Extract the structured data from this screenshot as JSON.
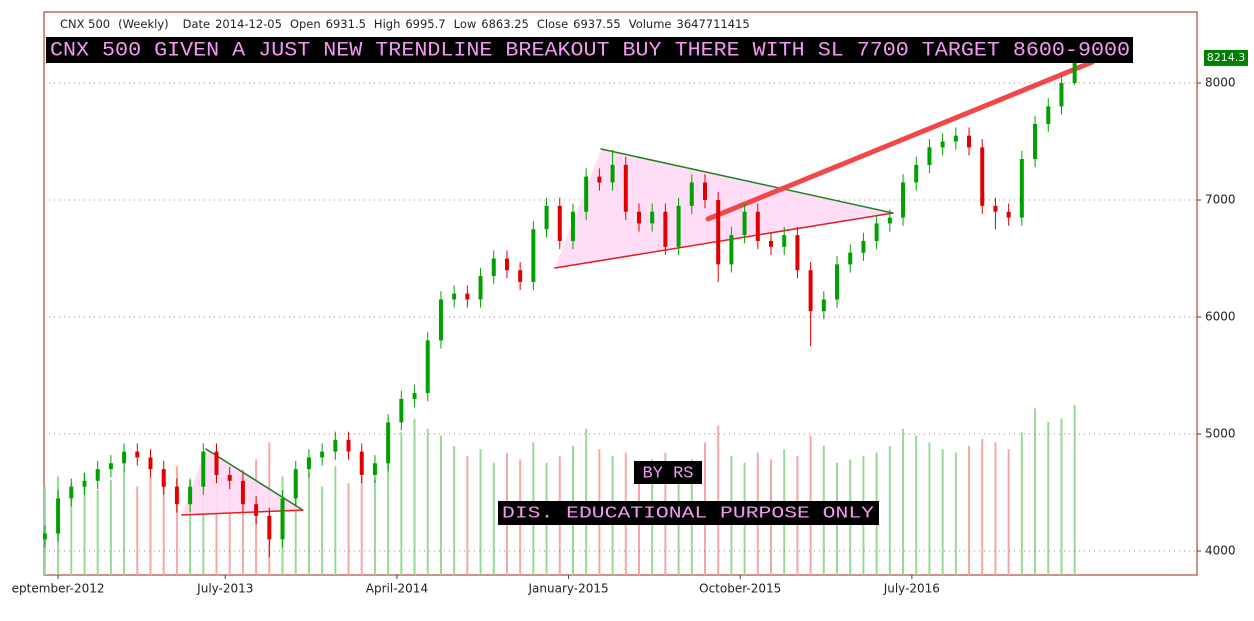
{
  "chart_data": {
    "type": "candlestick",
    "header": {
      "symbol": "CNX 500",
      "interval": "(Weekly)",
      "items": [
        {
          "label": "Date",
          "value": "2014-12-05"
        },
        {
          "label": "Open",
          "value": 6931.5
        },
        {
          "label": "High",
          "value": 6995.7
        },
        {
          "label": "Low",
          "value": 6863.25
        },
        {
          "label": "Close",
          "value": 6937.55
        },
        {
          "label": "Volume",
          "value": 3647711415
        }
      ]
    },
    "annotations": [
      "CNX 500 GIVEN A JUST NEW TRENDLINE BREAKOUT BUY THERE WITH SL 7700 TARGET 8600-9000",
      "BY RS",
      "DIS. EDUCATIONAL PURPOSE ONLY"
    ],
    "x": [
      0,
      3,
      6,
      9,
      12,
      15,
      18,
      21,
      24,
      27,
      30,
      33,
      36,
      39,
      42,
      45,
      48,
      51,
      54,
      57,
      60,
      63,
      66,
      69,
      72,
      75,
      78,
      81,
      84,
      87,
      90,
      93,
      96,
      99,
      102,
      105,
      108,
      111,
      114,
      117,
      120,
      123,
      126,
      129,
      132,
      135,
      138,
      141,
      144,
      147,
      150,
      153,
      156,
      159,
      162,
      165,
      168,
      171,
      174,
      177,
      180,
      183,
      186,
      189,
      192,
      195,
      198,
      201,
      204,
      207,
      210,
      213,
      216,
      219,
      222,
      225,
      228,
      231,
      234
    ],
    "open": [
      4100,
      4150,
      4450,
      4550,
      4600,
      4700,
      4750,
      4850,
      4800,
      4700,
      4550,
      4400,
      4550,
      4850,
      4650,
      4600,
      4400,
      4300,
      4100,
      4450,
      4700,
      4800,
      4850,
      4950,
      4850,
      4650,
      4750,
      5100,
      5300,
      5350,
      5800,
      6150,
      6200,
      6150,
      6350,
      6500,
      6400,
      6300,
      6750,
      6950,
      6650,
      6900,
      7200,
      7150,
      7300,
      6900,
      6800,
      6900,
      6600,
      6950,
      7150,
      7000,
      6450,
      6700,
      6900,
      6650,
      6600,
      6700,
      6400,
      6050,
      6150,
      6450,
      6550,
      6650,
      6800,
      6850,
      7150,
      7300,
      7450,
      7500,
      7550,
      7450,
      6950,
      6900,
      6850,
      7350,
      7650,
      7800,
      8000
    ],
    "high": [
      4220,
      4520,
      4620,
      4670,
      4770,
      4820,
      4920,
      4920,
      4870,
      4770,
      4620,
      4620,
      4920,
      4920,
      4720,
      4670,
      4470,
      4370,
      4520,
      4770,
      4870,
      4920,
      5020,
      5020,
      4920,
      4820,
      5170,
      5370,
      5420,
      5870,
      6220,
      6270,
      6270,
      6420,
      6570,
      6570,
      6470,
      6820,
      7020,
      7020,
      6970,
      7270,
      7270,
      7430,
      7370,
      6970,
      6970,
      6970,
      7020,
      7220,
      7220,
      7070,
      6770,
      6970,
      6970,
      6720,
      6770,
      6770,
      6470,
      6220,
      6520,
      6620,
      6720,
      6870,
      6920,
      7220,
      7370,
      7520,
      7570,
      7620,
      7620,
      7520,
      7020,
      6970,
      7420,
      7720,
      7870,
      8070,
      8250
    ],
    "low": [
      4030,
      4080,
      4380,
      4480,
      4530,
      4630,
      4680,
      4730,
      4630,
      4480,
      4330,
      4330,
      4480,
      4580,
      4530,
      4330,
      4230,
      3950,
      4030,
      4380,
      4630,
      4730,
      4780,
      4780,
      4580,
      4580,
      4680,
      5030,
      5230,
      5280,
      5730,
      6080,
      6080,
      6080,
      6280,
      6330,
      6230,
      6230,
      6680,
      6580,
      6580,
      6830,
      7080,
      7080,
      6830,
      6730,
      6730,
      6530,
      6530,
      6880,
      6930,
      6300,
      6380,
      6630,
      6580,
      6530,
      6530,
      6330,
      5750,
      5980,
      6080,
      6380,
      6480,
      6580,
      6730,
      6780,
      7080,
      7230,
      7380,
      7430,
      7380,
      6880,
      6750,
      6780,
      6780,
      7280,
      7580,
      7730,
      7980
    ],
    "close": [
      4150,
      4450,
      4550,
      4600,
      4700,
      4750,
      4850,
      4800,
      4700,
      4550,
      4400,
      4550,
      4850,
      4650,
      4600,
      4400,
      4300,
      4100,
      4450,
      4700,
      4800,
      4850,
      4950,
      4850,
      4650,
      4750,
      5100,
      5300,
      5350,
      5800,
      6150,
      6200,
      6150,
      6350,
      6500,
      6400,
      6300,
      6750,
      6950,
      6650,
      6900,
      7200,
      7150,
      7300,
      6900,
      6800,
      6900,
      6600,
      6950,
      7150,
      7000,
      6450,
      6700,
      6900,
      6650,
      6600,
      6700,
      6400,
      6050,
      6150,
      6450,
      6550,
      6650,
      6800,
      6850,
      7150,
      7300,
      7450,
      7500,
      7550,
      7450,
      6950,
      6900,
      6850,
      7350,
      7650,
      7800,
      8000,
      8214.3
    ],
    "volume": [
      2600000000,
      2900000000,
      2700000000,
      3000000000,
      2500000000,
      2800000000,
      3100000000,
      2600000000,
      2900000000,
      2700000000,
      3200000000,
      2800000000,
      3300000000,
      3000000000,
      2700000000,
      3100000000,
      3400000000,
      3900000000,
      2900000000,
      2800000000,
      3000000000,
      2600000000,
      3200000000,
      2700000000,
      2900000000,
      2800000000,
      3500000000,
      4200000000,
      4600000000,
      4300000000,
      4100000000,
      3800000000,
      3500000000,
      3700000000,
      3300000000,
      3600000000,
      3400000000,
      3900000000,
      3300000000,
      3500000000,
      3800000000,
      4300000000,
      3700000000,
      3500000000,
      3600000000,
      3300000000,
      3400000000,
      3600000000,
      3200000000,
      3400000000,
      3900000000,
      4400000000,
      3500000000,
      3300000000,
      3600000000,
      3400000000,
      3700000000,
      3500000000,
      4100000000,
      3800000000,
      3300000000,
      3400000000,
      3500000000,
      3600000000,
      3800000000,
      4300000000,
      4100000000,
      3900000000,
      3700000000,
      3600000000,
      3800000000,
      4000000000,
      3900000000,
      3700000000,
      4200000000,
      4900000000,
      4500000000,
      4600000000,
      5000000000
    ],
    "up_color": "#00a000",
    "down_color": "#e00000",
    "volume_up_color": "#9ad89a",
    "volume_down_color": "#f4a8a8",
    "drawings": [
      {
        "shape": "polygon",
        "x": [
          31.1,
          36.6,
          58.6
        ],
        "y": [
          4308,
          4872,
          4350
        ],
        "color": "#ffd9f5"
      },
      {
        "shape": "polygon",
        "x": [
          115.9,
          126.4,
          192.7
        ],
        "y": [
          6419,
          7436,
          6889
        ],
        "color": "#ffd9f5"
      },
      {
        "shape": "line",
        "x": [
          36.6,
          58.6
        ],
        "y": [
          4872,
          4350
        ],
        "color": "#208020",
        "width": 1.5
      },
      {
        "shape": "line",
        "x": [
          31.1,
          58.6
        ],
        "y": [
          4308,
          4350
        ],
        "color": "#e02020",
        "width": 1.5
      },
      {
        "shape": "line",
        "x": [
          126.4,
          192.7
        ],
        "y": [
          7436,
          6889
        ],
        "color": "#208020",
        "width": 1.5
      },
      {
        "shape": "line",
        "x": [
          115.9,
          192.7
        ],
        "y": [
          6419,
          6889
        ],
        "color": "#e02020",
        "width": 1.5
      },
      {
        "shape": "line",
        "x": [
          150.7,
          238
        ],
        "y": [
          6838,
          8179
        ],
        "color": "#f04848",
        "width": 5
      }
    ],
    "xlim": [
      -0.2,
      261.8
    ],
    "xticks": [
      {
        "value": 3,
        "label": "eptember-2012"
      },
      {
        "value": 41,
        "label": "July-2013"
      },
      {
        "value": 80,
        "label": "April-2014"
      },
      {
        "value": 119,
        "label": "January-2015"
      },
      {
        "value": 158,
        "label": "October-2015"
      },
      {
        "value": 197,
        "label": "July-2016"
      }
    ],
    "ylim": [
      3795,
      8607
    ],
    "yticks": [
      4000,
      5000,
      6000,
      7000,
      8000
    ],
    "grid": true,
    "last_price_color": "#008000"
  }
}
